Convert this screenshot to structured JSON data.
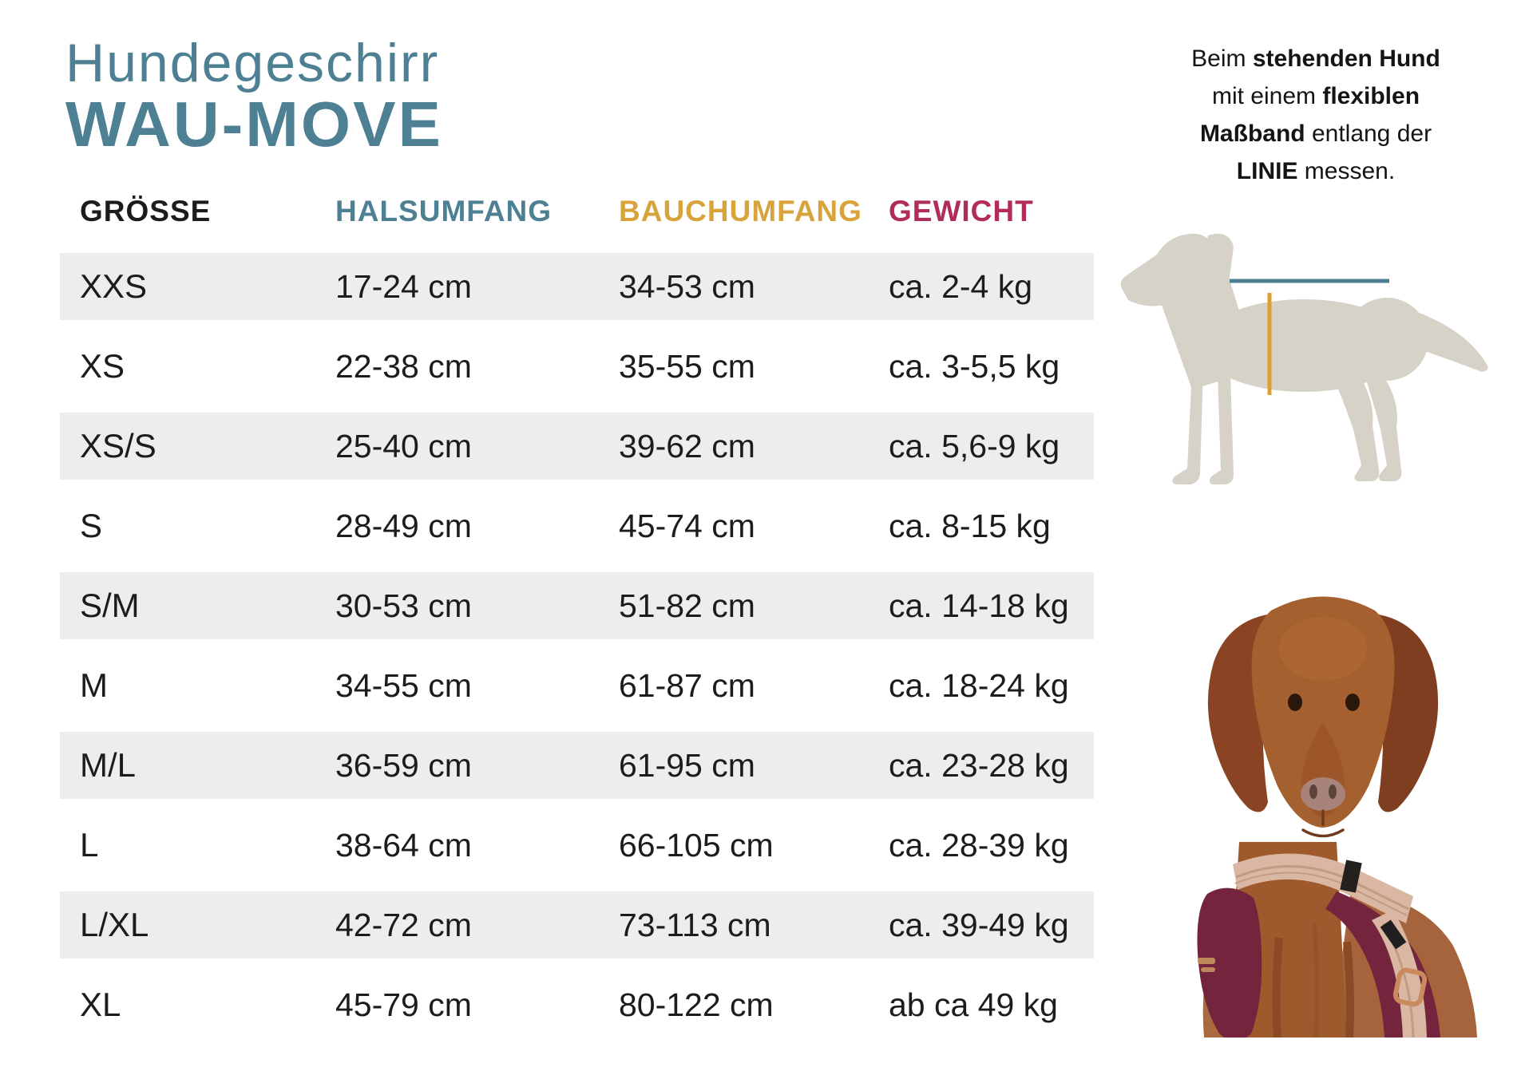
{
  "title": {
    "product_type": "Hundegeschirr",
    "product_name": "WAU-MOVE"
  },
  "colors": {
    "teal": "#4e8093",
    "orange": "#d9a33c",
    "crimson": "#b12d56",
    "row_stripe": "#ededeb",
    "silhouette_gray": "#d6d2c8",
    "neck_measure_line": "#4e7f91",
    "belly_measure_line": "#dd9f2e"
  },
  "table": {
    "headers": [
      {
        "label": "GRÖSSE",
        "color": "#1c1c1c"
      },
      {
        "label": "HALSUMFANG",
        "color": "#4e8093"
      },
      {
        "label": "BAUCHUMFANG",
        "color": "#d9a33c"
      },
      {
        "label": "GEWICHT",
        "color": "#b12d56"
      }
    ],
    "rows": [
      {
        "size": "XXS",
        "neck": "17-24 cm",
        "belly": "34-53 cm",
        "weight": "ca. 2-4 kg"
      },
      {
        "size": "XS",
        "neck": "22-38 cm",
        "belly": "35-55 cm",
        "weight": "ca. 3-5,5 kg"
      },
      {
        "size": "XS/S",
        "neck": "25-40 cm",
        "belly": "39-62 cm",
        "weight": "ca. 5,6-9 kg"
      },
      {
        "size": "S",
        "neck": "28-49 cm",
        "belly": "45-74 cm",
        "weight": "ca. 8-15 kg"
      },
      {
        "size": "S/M",
        "neck": "30-53 cm",
        "belly": "51-82 cm",
        "weight": "ca. 14-18 kg"
      },
      {
        "size": "M",
        "neck": "34-55 cm",
        "belly": "61-87 cm",
        "weight": "ca. 18-24 kg"
      },
      {
        "size": "M/L",
        "neck": "36-59 cm",
        "belly": "61-95 cm",
        "weight": "ca. 23-28 kg"
      },
      {
        "size": "L",
        "neck": "38-64 cm",
        "belly": "66-105 cm",
        "weight": "ca. 28-39 kg"
      },
      {
        "size": "L/XL",
        "neck": "42-72 cm",
        "belly": "73-113 cm",
        "weight": "ca. 39-49 kg"
      },
      {
        "size": "XL",
        "neck": "45-79 cm",
        "belly": "80-122 cm",
        "weight": "ab ca 49 kg"
      }
    ]
  },
  "note": {
    "lines": [
      [
        {
          "t": "Beim ",
          "b": false
        },
        {
          "t": "stehenden Hund",
          "b": true
        }
      ],
      [
        {
          "t": "mit einem ",
          "b": false
        },
        {
          "t": "flexiblen",
          "b": true
        }
      ],
      [
        {
          "t": "Maßband",
          "b": true
        },
        {
          "t": " entlang der",
          "b": false
        }
      ],
      [
        {
          "t": "LINIE",
          "b": true
        },
        {
          "t": " messen.",
          "b": false
        }
      ]
    ]
  },
  "icons": {
    "silhouette": "dog-measurement-silhouette",
    "photo": "dog-wearing-harness-photo"
  }
}
